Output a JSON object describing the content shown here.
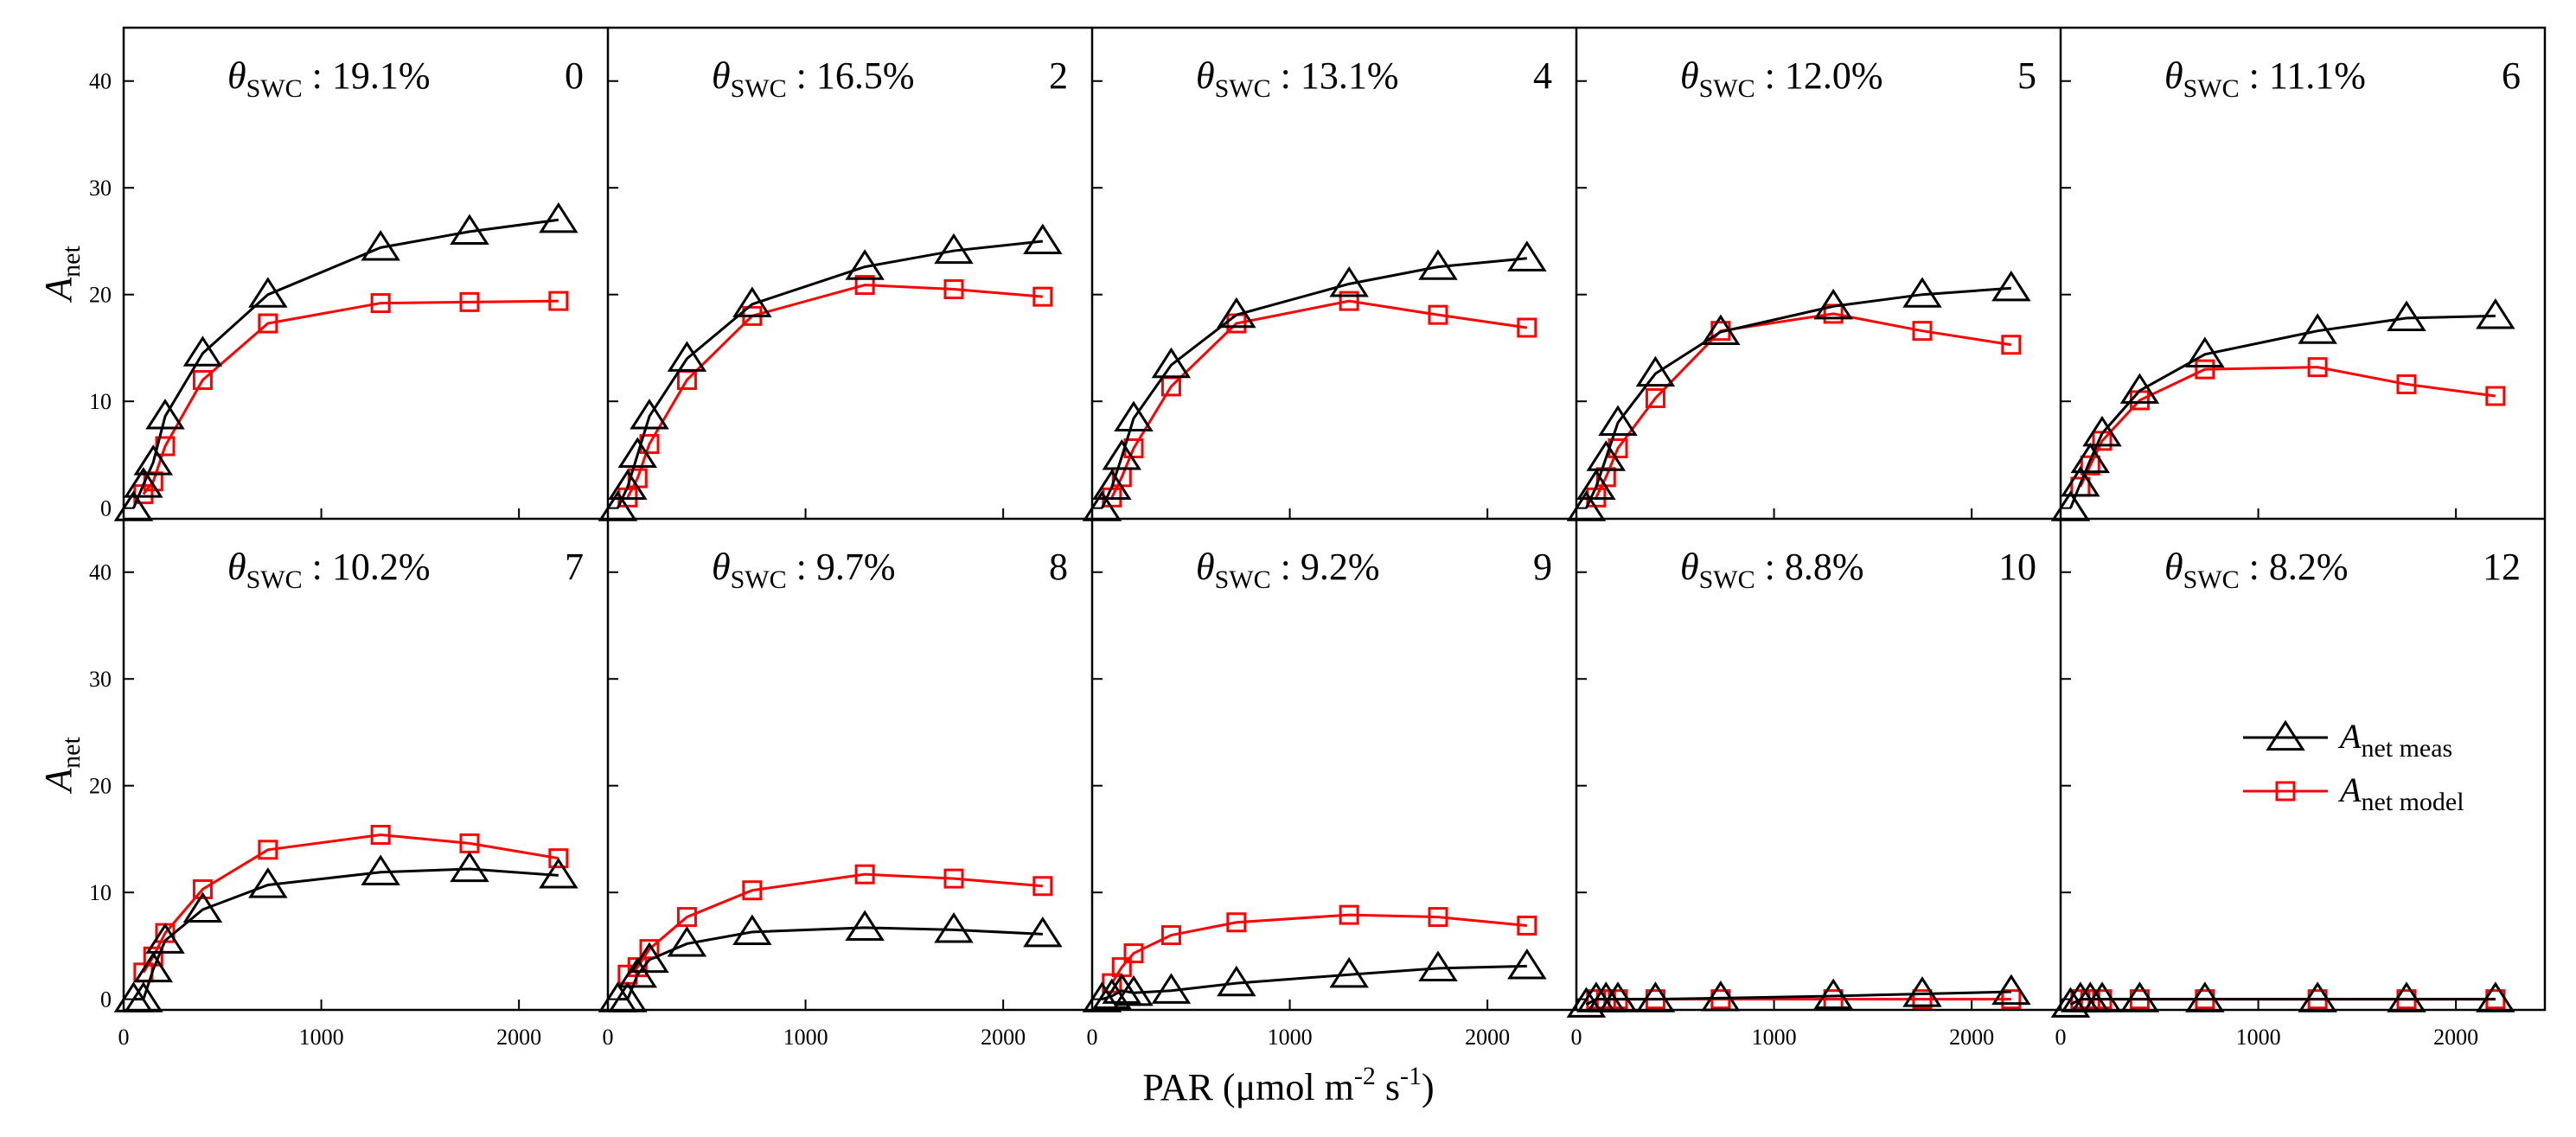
{
  "chart_data": {
    "type": "line",
    "x_axis_label": "PAR (μmol m-2 s-1)",
    "y_axis_label": "Anet",
    "xlim": [
      0,
      2450
    ],
    "ylim": [
      -1,
      45
    ],
    "x_ticks": [
      0,
      1000,
      2000
    ],
    "y_ticks": [
      0,
      10,
      20,
      30,
      40
    ],
    "legend": {
      "position": "center-right of panel 10",
      "entries": [
        {
          "series": "meas",
          "base": "A",
          "sub": "net meas",
          "color": "#000000",
          "marker": "triangle"
        },
        {
          "series": "model",
          "base": "A",
          "sub": "net model",
          "color": "#ff0000",
          "marker": "square"
        }
      ]
    },
    "panels": [
      {
        "theta_label": "SWC",
        "theta_value": " : 19.1%",
        "day": "0",
        "meas": {
          "x": [
            50,
            100,
            150,
            210,
            400,
            730,
            1300,
            1750,
            2200
          ],
          "y": [
            0,
            2.2,
            4.3,
            8.6,
            14.5,
            20,
            24.4,
            25.9,
            27
          ]
        },
        "model": {
          "x": [
            100,
            150,
            210,
            400,
            730,
            1300,
            1750,
            2200
          ],
          "y": [
            1.3,
            2.5,
            5.8,
            12,
            17.3,
            19.2,
            19.3,
            19.4
          ]
        }
      },
      {
        "theta_label": "SWC",
        "theta_value": " : 16.5%",
        "day": "2",
        "meas": {
          "x": [
            50,
            100,
            150,
            210,
            400,
            730,
            1300,
            1750,
            2200
          ],
          "y": [
            0,
            2,
            5,
            8.6,
            14,
            19.1,
            22.6,
            24.1,
            25
          ]
        },
        "model": {
          "x": [
            100,
            150,
            210,
            400,
            730,
            1300,
            1750,
            2200
          ],
          "y": [
            1,
            2.8,
            6,
            12,
            18,
            20.9,
            20.5,
            19.8
          ]
        }
      },
      {
        "theta_label": "SWC",
        "theta_value": " : 13.1%",
        "day": "4",
        "meas": {
          "x": [
            50,
            100,
            150,
            210,
            400,
            730,
            1300,
            1750,
            2200
          ],
          "y": [
            0,
            2,
            4.8,
            8.4,
            13.4,
            18.1,
            21,
            22.6,
            23.4
          ]
        },
        "model": {
          "x": [
            100,
            150,
            210,
            400,
            730,
            1300,
            1750,
            2200
          ],
          "y": [
            1,
            2.9,
            5.6,
            11.4,
            17.3,
            19.4,
            18.1,
            16.9
          ]
        }
      },
      {
        "theta_label": "SWC",
        "theta_value": " : 12.0%",
        "day": "5",
        "meas": {
          "x": [
            50,
            100,
            150,
            210,
            400,
            730,
            1300,
            1750,
            2200
          ],
          "y": [
            0,
            2,
            4.7,
            8,
            12.6,
            16.5,
            18.9,
            20,
            20.6
          ]
        },
        "model": {
          "x": [
            100,
            150,
            210,
            400,
            730,
            1300,
            1750,
            2200
          ],
          "y": [
            1,
            2.9,
            5.6,
            10.3,
            16.6,
            18.2,
            16.6,
            15.3
          ]
        }
      },
      {
        "theta_label": "SWC",
        "theta_value": " : 11.1%",
        "day": "6",
        "meas": {
          "x": [
            50,
            100,
            150,
            210,
            400,
            730,
            1300,
            1750,
            2200
          ],
          "y": [
            0,
            2.3,
            4.5,
            7,
            11,
            14.4,
            16.6,
            17.8,
            18
          ]
        },
        "model": {
          "x": [
            100,
            150,
            210,
            400,
            730,
            1300,
            1750,
            2200
          ],
          "y": [
            2,
            4,
            6.3,
            10.1,
            13,
            13.2,
            11.6,
            10.5
          ]
        }
      },
      {
        "theta_label": "SWC",
        "theta_value": " : 10.2%",
        "day": "7",
        "meas": {
          "x": [
            50,
            100,
            150,
            210,
            400,
            730,
            1300,
            1750,
            2200
          ],
          "y": [
            0,
            0,
            2.8,
            5.5,
            8.4,
            10.7,
            11.9,
            12.2,
            11.6
          ]
        },
        "model": {
          "x": [
            100,
            150,
            210,
            400,
            730,
            1300,
            1750,
            2200
          ],
          "y": [
            2.5,
            4,
            6.2,
            10.3,
            14,
            15.4,
            14.6,
            13.2
          ]
        }
      },
      {
        "theta_label": "SWC",
        "theta_value": " : 9.7%",
        "day": "8",
        "meas": {
          "x": [
            50,
            100,
            150,
            210,
            400,
            730,
            1300,
            1750,
            2200
          ],
          "y": [
            0,
            0,
            2.3,
            3.7,
            5.2,
            6.3,
            6.7,
            6.5,
            6.1
          ]
        },
        "model": {
          "x": [
            100,
            150,
            210,
            400,
            730,
            1300,
            1750,
            2200
          ],
          "y": [
            2.3,
            3,
            4.7,
            7.7,
            10.2,
            11.7,
            11.3,
            10.6
          ]
        }
      },
      {
        "theta_label": "SWC",
        "theta_value": " : 9.2%",
        "day": "9",
        "meas": {
          "x": [
            50,
            100,
            150,
            210,
            400,
            730,
            1300,
            1750,
            2200
          ],
          "y": [
            0,
            0.3,
            0.8,
            0.6,
            0.8,
            1.5,
            2.3,
            2.9,
            3.1
          ]
        },
        "model": {
          "x": [
            100,
            150,
            210,
            400,
            730,
            1300,
            1750,
            2200
          ],
          "y": [
            1.5,
            3,
            4.3,
            6,
            7.2,
            7.9,
            7.7,
            6.9
          ]
        }
      },
      {
        "theta_label": "SWC",
        "theta_value": " : 8.8%",
        "day": "10",
        "meas": {
          "x": [
            50,
            100,
            150,
            210,
            400,
            730,
            1300,
            1750,
            2200
          ],
          "y": [
            -0.5,
            0,
            0,
            0,
            0,
            0.1,
            0.3,
            0.5,
            0.7
          ]
        },
        "model": {
          "x": [
            100,
            150,
            210,
            400,
            730,
            1300,
            1750,
            2200
          ],
          "y": [
            0,
            0,
            0,
            0,
            0,
            0,
            0,
            0
          ]
        }
      },
      {
        "theta_label": "SWC",
        "theta_value": " : 8.2%",
        "day": "12",
        "meas": {
          "x": [
            50,
            100,
            150,
            210,
            400,
            730,
            1300,
            1750,
            2200
          ],
          "y": [
            -0.5,
            0,
            0,
            0,
            0,
            0,
            0,
            0,
            0
          ]
        },
        "model": {
          "x": [
            100,
            150,
            210,
            400,
            730,
            1300,
            1750,
            2200
          ],
          "y": [
            0,
            0,
            0,
            0,
            0,
            0,
            0,
            0
          ]
        }
      }
    ]
  }
}
